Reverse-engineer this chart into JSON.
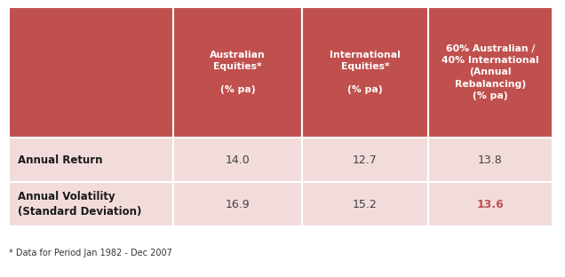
{
  "header_bg_color": "#c0504d",
  "header_text_color": "#ffffff",
  "row_bg_color": "#f2dcdb",
  "col_headers": [
    "Australian\nEquities*\n\n(% pa)",
    "International\nEquities*\n\n(% pa)",
    "60% Australian /\n40% International\n(Annual\nRebalancing)\n(% pa)"
  ],
  "row_labels": [
    "Annual Return",
    "Annual Volatility\n(Standard Deviation)"
  ],
  "row1_values": [
    "14.0",
    "12.7",
    "13.8"
  ],
  "row2_values": [
    "16.9",
    "15.2",
    "13.6"
  ],
  "row2_highlight_col": 2,
  "highlight_color": "#c0504d",
  "normal_value_color": "#404040",
  "row_label_color": "#1a1a1a",
  "footnote": "* Data for Period Jan 1982 - Dec 2007",
  "bg_color": "#ffffff"
}
